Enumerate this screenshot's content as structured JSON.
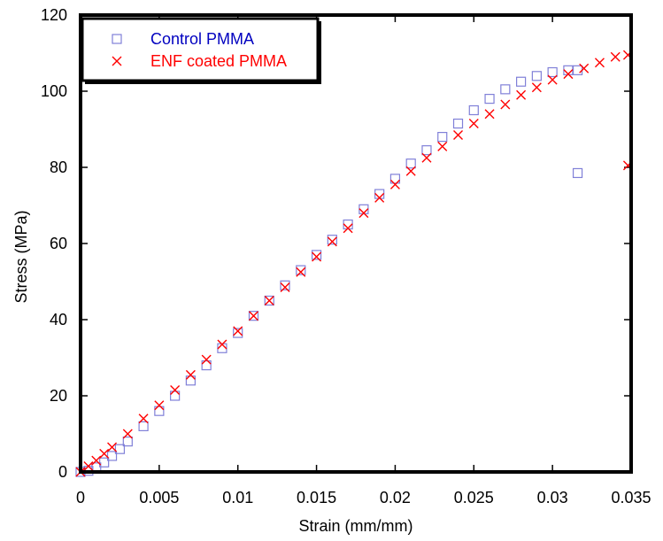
{
  "chart_data": {
    "type": "scatter",
    "xlabel": "Strain (mm/mm)",
    "ylabel": "Stress (MPa)",
    "xlim": [
      0,
      0.035
    ],
    "ylim": [
      0,
      120
    ],
    "xticks": [
      0,
      0.005,
      0.01,
      0.015,
      0.02,
      0.025,
      0.03,
      0.035
    ],
    "xtick_labels": [
      "0",
      "0.005",
      "0.01",
      "0.015",
      "0.02",
      "0.025",
      "0.03",
      "0.035"
    ],
    "yticks": [
      0,
      20,
      40,
      60,
      80,
      100,
      120
    ],
    "ytick_labels": [
      "0",
      "20",
      "40",
      "60",
      "80",
      "100",
      "120"
    ],
    "grid": false,
    "legend_position": "top-left",
    "series": [
      {
        "name": "Control PMMA",
        "marker": "square",
        "color": "#8080d8",
        "legend_color": "#0000c0",
        "x": [
          0,
          0.0005,
          0.001,
          0.0015,
          0.002,
          0.0025,
          0.003,
          0.004,
          0.005,
          0.006,
          0.007,
          0.008,
          0.009,
          0.01,
          0.011,
          0.012,
          0.013,
          0.014,
          0.015,
          0.016,
          0.017,
          0.018,
          0.019,
          0.02,
          0.021,
          0.022,
          0.023,
          0.024,
          0.025,
          0.026,
          0.027,
          0.028,
          0.029,
          0.03,
          0.031,
          0.0316,
          0.0316
        ],
        "y": [
          0,
          0.3,
          1.2,
          2.5,
          4.2,
          6,
          8,
          12,
          16,
          20,
          24,
          28,
          32.5,
          36.5,
          41,
          45,
          49,
          53,
          57,
          61,
          65,
          69,
          73,
          77,
          81,
          84.5,
          88,
          91.5,
          95,
          98,
          100.5,
          102.5,
          104,
          105,
          105.5,
          105.5,
          78.5
        ]
      },
      {
        "name": "ENF coated PMMA",
        "marker": "x",
        "color": "#ff0000",
        "legend_color": "#ff0000",
        "x": [
          0,
          0.0005,
          0.001,
          0.0015,
          0.002,
          0.003,
          0.004,
          0.005,
          0.006,
          0.007,
          0.008,
          0.009,
          0.01,
          0.011,
          0.012,
          0.013,
          0.014,
          0.015,
          0.016,
          0.017,
          0.018,
          0.019,
          0.02,
          0.021,
          0.022,
          0.023,
          0.024,
          0.025,
          0.026,
          0.027,
          0.028,
          0.029,
          0.03,
          0.031,
          0.032,
          0.033,
          0.034,
          0.0348,
          0.0348
        ],
        "y": [
          0,
          1.5,
          3,
          4.8,
          6.5,
          10,
          14,
          17.5,
          21.5,
          25.5,
          29.5,
          33.5,
          37,
          41,
          45,
          48.5,
          52.5,
          56.5,
          60.5,
          64,
          68,
          72,
          75.5,
          79,
          82.5,
          85.5,
          88.5,
          91.5,
          94,
          96.5,
          99,
          101,
          103,
          104.5,
          106,
          107.5,
          109,
          109.5,
          80.5
        ]
      }
    ]
  }
}
